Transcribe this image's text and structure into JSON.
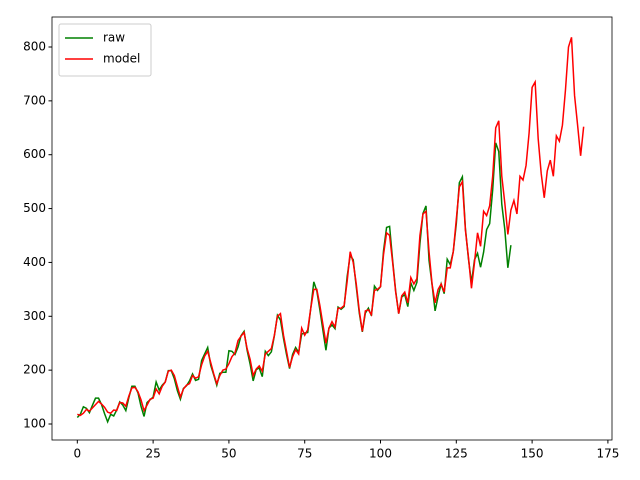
{
  "chart_data": {
    "type": "line",
    "series": [
      {
        "name": "raw",
        "color": "#008000",
        "values": [
          112,
          118,
          132,
          129,
          121,
          135,
          148,
          148,
          136,
          119,
          104,
          118,
          115,
          126,
          141,
          135,
          125,
          149,
          170,
          170,
          158,
          133,
          114,
          140,
          145,
          150,
          178,
          163,
          172,
          178,
          199,
          199,
          184,
          162,
          146,
          166,
          171,
          180,
          193,
          181,
          183,
          218,
          230,
          242,
          209,
          191,
          172,
          194,
          196,
          196,
          236,
          235,
          229,
          243,
          264,
          272,
          237,
          211,
          180,
          201,
          204,
          188,
          235,
          227,
          234,
          264,
          302,
          293,
          259,
          229,
          203,
          229,
          242,
          233,
          267,
          269,
          270,
          315,
          364,
          347,
          312,
          274,
          237,
          278,
          284,
          277,
          317,
          313,
          318,
          374,
          413,
          405,
          355,
          306,
          271,
          306,
          315,
          301,
          356,
          348,
          355,
          422,
          465,
          467,
          404,
          347,
          305,
          336,
          340,
          318,
          362,
          348,
          363,
          435,
          491,
          505,
          404,
          359,
          310,
          337,
          360,
          342,
          406,
          396,
          420,
          472,
          548,
          559,
          463,
          407,
          362,
          405,
          417,
          391,
          419,
          461,
          472,
          535,
          622,
          606,
          508,
          461,
          390,
          432
        ]
      },
      {
        "name": "model",
        "color": "#ff0000",
        "values": [
          118,
          116,
          120,
          127,
          124,
          130,
          136,
          142,
          137,
          131,
          122,
          120,
          126,
          125,
          140,
          139,
          133,
          152,
          167,
          168,
          160,
          145,
          125,
          135,
          146,
          148,
          165,
          156,
          170,
          178,
          198,
          200,
          190,
          170,
          150,
          165,
          172,
          175,
          190,
          185,
          188,
          210,
          226,
          235,
          214,
          193,
          175,
          190,
          200,
          202,
          212,
          225,
          232,
          255,
          263,
          270,
          240,
          220,
          190,
          202,
          208,
          198,
          230,
          235,
          240,
          265,
          300,
          305,
          265,
          235,
          205,
          225,
          238,
          230,
          278,
          265,
          275,
          315,
          350,
          350,
          320,
          285,
          250,
          278,
          290,
          280,
          315,
          315,
          320,
          365,
          420,
          400,
          360,
          310,
          272,
          310,
          312,
          303,
          348,
          350,
          355,
          415,
          455,
          450,
          400,
          345,
          305,
          338,
          345,
          325,
          372,
          360,
          370,
          450,
          490,
          495,
          420,
          360,
          325,
          350,
          360,
          345,
          390,
          390,
          420,
          480,
          540,
          550,
          460,
          410,
          352,
          400,
          455,
          430,
          495,
          487,
          505,
          560,
          650,
          663,
          560,
          510,
          452,
          497,
          515,
          490,
          560,
          553,
          580,
          640,
          725,
          735,
          630,
          565,
          520,
          570,
          590,
          560,
          635,
          625,
          655,
          720,
          800,
          818,
          710,
          655,
          598,
          652
        ]
      }
    ],
    "xlim": [
      -8.35,
      176.35
    ],
    "ylim": [
      70.3,
      855.7
    ],
    "xticks": [
      0,
      25,
      50,
      75,
      100,
      125,
      150,
      175
    ],
    "yticks": [
      100,
      200,
      300,
      400,
      500,
      600,
      700,
      800
    ],
    "legend": "upper left"
  }
}
